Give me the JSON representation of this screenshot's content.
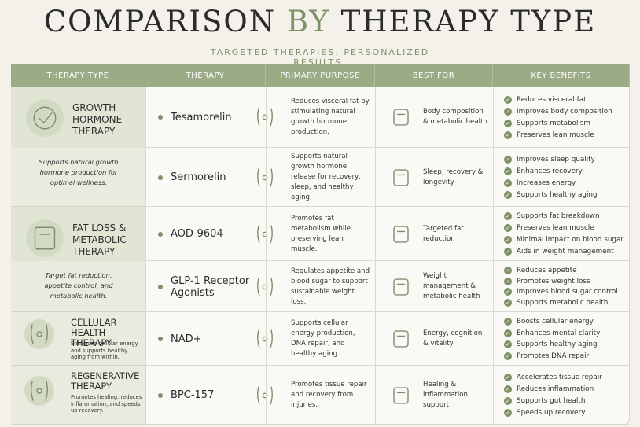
{
  "header": {
    "title_parts": [
      "COMPARISON",
      "BY",
      "THERAPY TYPE"
    ],
    "subtitle": "TARGETED THERAPIES. PERSONALIZED RESULTS."
  },
  "table": {
    "columns": [
      "THERAPY TYPE",
      "THERAPY",
      "PRIMARY PURPOSE",
      "BEST FOR",
      "KEY BENEFITS"
    ],
    "groups": [
      {
        "name": "GROWTH HORMONE THERAPY",
        "description": "Supports natural growth hormone production for optimal wellness.",
        "therapies": [
          {
            "name": "Tesamorelin",
            "purpose": "Reduces visceral fat by stimulating natural growth hormone production.",
            "best_for": "Body composition & metabolic health",
            "benefits": [
              "Reduces visceral fat",
              "Improves body composition",
              "Supports metabolism",
              "Preserves lean muscle"
            ]
          },
          {
            "name": "Sermorelin",
            "purpose": "Supports natural growth hormone release for recovery, sleep, and healthy aging.",
            "best_for": "Sleep, recovery & longevity",
            "benefits": [
              "Improves sleep quality",
              "Enhances recovery",
              "Increases energy",
              "Supports healthy aging"
            ]
          }
        ]
      },
      {
        "name": "FAT LOSS & METABOLIC THERAPY",
        "description": "Target fat reduction, appetite control, and metabolic health.",
        "therapies": [
          {
            "name": "AOD-9604",
            "purpose": "Promotes fat metabolism while preserving lean muscle.",
            "best_for": "Targeted fat reduction",
            "benefits": [
              "Supports fat breakdown",
              "Preserves lean muscle",
              "Minimal impact on blood sugar",
              "Aids in weight management"
            ]
          },
          {
            "name": "GLP-1 Receptor Agonists",
            "purpose": "Regulates appetite and blood sugar to support sustainable weight loss.",
            "best_for": "Weight management & metabolic health",
            "benefits": [
              "Reduces appetite",
              "Promotes weight loss",
              "Improves blood sugar control",
              "Supports metabolic health"
            ]
          }
        ]
      },
      {
        "name": "CELLULAR HEALTH THERAPY",
        "description": "Enhances cellular energy and supports healthy aging from within.",
        "therapies": [
          {
            "name": "NAD+",
            "purpose": "Supports cellular energy production, DNA repair, and healthy aging.",
            "best_for": "Energy, cognition & vitality",
            "benefits": [
              "Boosts cellular energy",
              "Enhances mental clarity",
              "Supports healthy aging",
              "Promotes DNA repair"
            ]
          }
        ]
      },
      {
        "name": "REGENERATIVE THERAPY",
        "description": "Promotes healing, reduces inflammation, and speeds up recovery.",
        "therapies": [
          {
            "name": "BPC-157",
            "purpose": "Promotes tissue repair and recovery from injuries.",
            "best_for": "Healing & inflammation support",
            "benefits": [
              "Accelerates tissue repair",
              "Reduces inflammation",
              "Supports gut health",
              "Speeds up recovery"
            ]
          }
        ]
      }
    ]
  }
}
